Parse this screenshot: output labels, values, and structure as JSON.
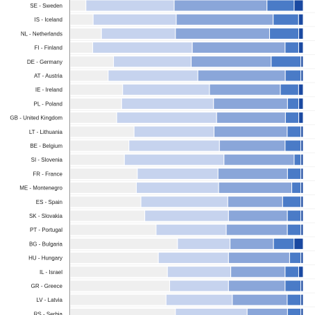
{
  "chart_data": {
    "type": "bar",
    "orientation": "horizontal",
    "stacked": true,
    "normalized_percent": true,
    "categories": [
      "SE - Sweden",
      "IS - Iceland",
      "NL - Netherlands",
      "FI - Finland",
      "DE - Germany",
      "AT - Austria",
      "IE - Ireland",
      "PL - Poland",
      "GB - United Kingdom",
      "LT - Lithuania",
      "BE - Belgium",
      "SI - Slovenia",
      "FR - France",
      "ME - Montenegro",
      "ES - Spain",
      "SK - Slovakia",
      "PT - Portugal",
      "BG - Bulgaria",
      "HU - Hungary",
      "IL - Israel",
      "GR - Greece",
      "LV - Latvia",
      "RS - Serbia"
    ],
    "series": [
      {
        "color": "#efefef",
        "values": [
          7,
          10,
          14,
          10,
          19,
          17,
          23,
          23,
          21,
          28,
          26,
          24,
          30,
          29,
          31,
          33,
          38,
          47,
          39,
          43,
          44,
          42,
          47
        ]
      },
      {
        "color": "#c6d3ee",
        "values": [
          39,
          36,
          33,
          44,
          34,
          40,
          38,
          41,
          45,
          35,
          40,
          44,
          36,
          36,
          38,
          37,
          31,
          23,
          31,
          28,
          26,
          29,
          32
        ]
      },
      {
        "color": "#8aa6d9",
        "values": [
          41,
          42,
          42,
          41,
          35,
          39,
          31,
          33,
          31,
          32,
          29,
          31,
          31,
          32,
          24,
          26,
          27,
          19,
          27,
          24,
          25,
          24,
          18
        ]
      },
      {
        "color": "#4a7bc7",
        "values": [
          12,
          11,
          13,
          6,
          13,
          7,
          8,
          5,
          6,
          6,
          7,
          3,
          6,
          4,
          8,
          6,
          6,
          9,
          5,
          6,
          7,
          6,
          6
        ]
      },
      {
        "color": "#1a49a1",
        "values": [
          4,
          2,
          2,
          2,
          1,
          1,
          2,
          2,
          2,
          1,
          1,
          1,
          1,
          1,
          1,
          1,
          1,
          4,
          1,
          2,
          1,
          1,
          1
        ]
      }
    ],
    "xlim": [
      0,
      100
    ],
    "grid": true
  }
}
